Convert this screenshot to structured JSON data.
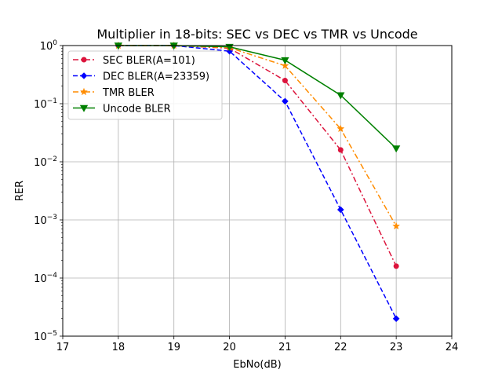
{
  "chart_data": {
    "type": "line",
    "title": "Multiplier in 18-bits: SEC vs DEC vs TMR vs Uncode",
    "xlabel": "EbNo(dB)",
    "ylabel": "RER",
    "xlim": [
      17,
      24
    ],
    "ylim": [
      1e-05,
      1
    ],
    "yscale": "log",
    "grid": true,
    "legend_position": "upper-left",
    "x_ticks": [
      "17",
      "18",
      "19",
      "20",
      "21",
      "22",
      "23",
      "24"
    ],
    "y_ticks": [
      {
        "base": "10",
        "exp": "−5"
      },
      {
        "base": "10",
        "exp": "−4"
      },
      {
        "base": "10",
        "exp": "−3"
      },
      {
        "base": "10",
        "exp": "−2"
      },
      {
        "base": "10",
        "exp": "−1"
      },
      {
        "base": "10",
        "exp": "0"
      }
    ],
    "series": [
      {
        "name": "SEC BLER(A=101)",
        "color": "#dc143c",
        "line_style": "dashdot",
        "marker": "circle",
        "x": [
          18,
          19,
          20,
          21,
          22,
          23
        ],
        "y": [
          1.0,
          1.0,
          0.9,
          0.25,
          0.016,
          0.00016
        ]
      },
      {
        "name": "DEC BLER(A=23359)",
        "color": "#0000ff",
        "line_style": "dashed",
        "marker": "diamond",
        "x": [
          18,
          19,
          20,
          21,
          22,
          23
        ],
        "y": [
          1.0,
          1.0,
          0.8,
          0.11,
          0.0015,
          2e-05
        ]
      },
      {
        "name": "TMR BLER",
        "color": "#ff8c00",
        "line_style": "dashdot",
        "marker": "star",
        "x": [
          18,
          19,
          20,
          21,
          22,
          23
        ],
        "y": [
          1.0,
          1.0,
          0.92,
          0.45,
          0.037,
          0.00078
        ]
      },
      {
        "name": "Uncode BLER",
        "color": "#008000",
        "line_style": "solid",
        "marker": "triangle-down",
        "x": [
          18,
          19,
          20,
          21,
          22,
          23
        ],
        "y": [
          1.0,
          1.0,
          0.95,
          0.56,
          0.14,
          0.017
        ]
      }
    ]
  }
}
